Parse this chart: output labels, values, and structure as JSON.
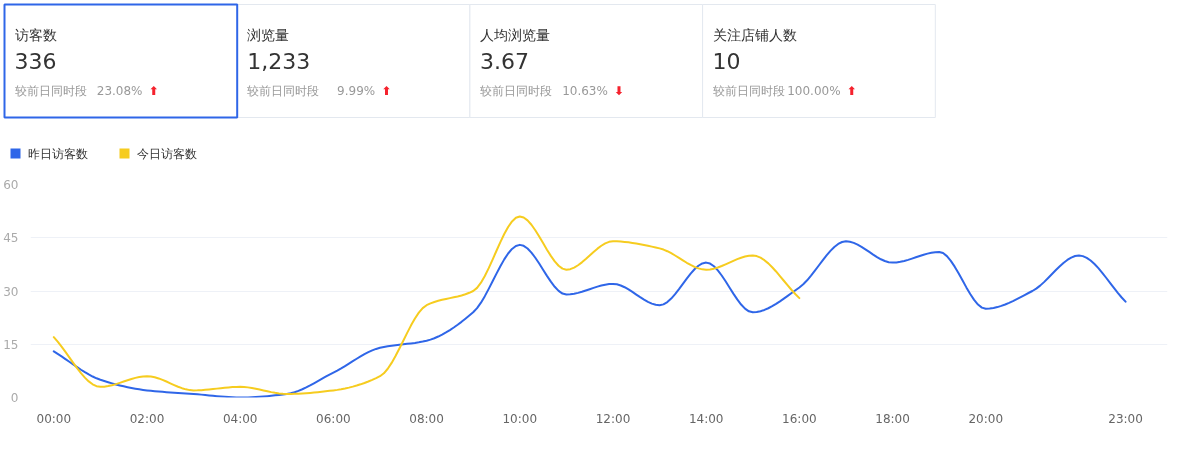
{
  "chart_data": [
    {
      "type": "other",
      "categories": [
        "访客数",
        "浏览量",
        "人均浏览量",
        "关注店铺人数"
      ],
      "annotations": [
        "336",
        "较前日同时段",
        "23.08%",
        "⬆",
        "1,233",
        "较前日同时段",
        "9.99%",
        "⬆",
        "3.67",
        "较前日同时段",
        "10.63%",
        "⬇",
        "10",
        "较前日同时段",
        "100.00%",
        "⬆"
      ]
    },
    {
      "type": "line",
      "legend": "top left",
      "grid": "y",
      "x": [
        0,
        1,
        2,
        3,
        4,
        5,
        6,
        7,
        8,
        9,
        10,
        11,
        12,
        13,
        14,
        15,
        16,
        17,
        18,
        19,
        20,
        21,
        22,
        23
      ],
      "xlim": [
        -0.5,
        23.9
      ],
      "xticks": [
        {
          "value": 0,
          "label": "00:00"
        },
        {
          "value": 2,
          "label": "02:00"
        },
        {
          "value": 4,
          "label": "04:00"
        },
        {
          "value": 6,
          "label": "06:00"
        },
        {
          "value": 8,
          "label": "08:00"
        },
        {
          "value": 10,
          "label": "10:00"
        },
        {
          "value": 12,
          "label": "12:00"
        },
        {
          "value": 14,
          "label": "14:00"
        },
        {
          "value": 16,
          "label": "16:00"
        },
        {
          "value": 18,
          "label": "18:00"
        },
        {
          "value": 20,
          "label": "20:00"
        },
        {
          "value": 23,
          "label": "23:00"
        }
      ],
      "ylim": [
        0,
        60
      ],
      "yticks": [
        0,
        15,
        30,
        45,
        60
      ],
      "series": [
        {
          "name": "昨日访客数",
          "color": "#2f66e8",
          "values": [
            13,
            5,
            2,
            1,
            0,
            1,
            7,
            14,
            16,
            24,
            43,
            29,
            32,
            26,
            38,
            24,
            31,
            44,
            38,
            41,
            25,
            30,
            40,
            27
          ]
        },
        {
          "name": "今日访客数",
          "color": "#f6cc1f",
          "x": [
            0,
            1,
            2,
            3,
            4,
            5,
            6,
            7,
            8,
            9,
            10,
            11,
            12,
            13,
            14,
            15,
            16
          ],
          "values": [
            17,
            3,
            6,
            2,
            3,
            1,
            2,
            6,
            26,
            30,
            51,
            36,
            44,
            42,
            36,
            40,
            28
          ]
        }
      ]
    }
  ]
}
